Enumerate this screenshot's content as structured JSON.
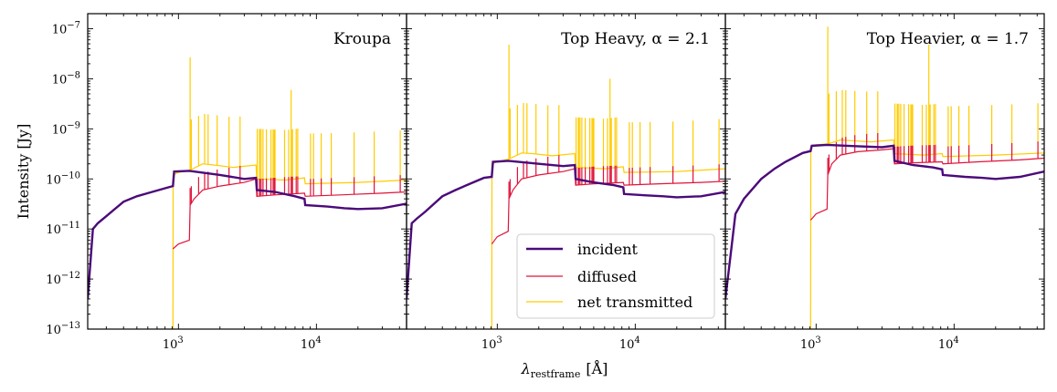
{
  "chart_data": {
    "type": "line",
    "y_axis": {
      "label_main": "Intensity [Jy]",
      "scale": "log",
      "range": [
        1e-13,
        2e-07
      ],
      "ticks": [
        {
          "value": 1e-13,
          "base": "10",
          "exp": "−13"
        },
        {
          "value": 1e-12,
          "base": "10",
          "exp": "−12"
        },
        {
          "value": 1e-11,
          "base": "10",
          "exp": "−11"
        },
        {
          "value": 1e-10,
          "base": "10",
          "exp": "−10"
        },
        {
          "value": 1e-09,
          "base": "10",
          "exp": "−9"
        },
        {
          "value": 1e-08,
          "base": "10",
          "exp": "−8"
        },
        {
          "value": 1e-07,
          "base": "10",
          "exp": "−7"
        }
      ]
    },
    "x_axis": {
      "label_main": "λ",
      "label_sub": "restframe",
      "label_unit": "[Å]",
      "scale": "log",
      "range": [
        220,
        45000
      ],
      "ticks": [
        {
          "value": 1000,
          "base": "10",
          "exp": "3"
        },
        {
          "value": 10000,
          "base": "10",
          "exp": "4"
        }
      ]
    },
    "legend": {
      "placement": "lower-right of middle panel",
      "entries": [
        {
          "label": "incident",
          "color": "#4b0a7a"
        },
        {
          "label": "diffused",
          "color": "#e0133a"
        },
        {
          "label": "net transmitted",
          "color": "#ffcc00"
        }
      ]
    },
    "panels": [
      {
        "title": "Kroupa",
        "incident": [
          [
            220,
            4e-13
          ],
          [
            240,
            1e-11
          ],
          [
            260,
            1.3e-11
          ],
          [
            300,
            1.8e-11
          ],
          [
            400,
            3.5e-11
          ],
          [
            500,
            4.5e-11
          ],
          [
            600,
            5.2e-11
          ],
          [
            800,
            6.5e-11
          ],
          [
            912,
            7.2e-11
          ],
          [
            930,
            1.4e-10
          ],
          [
            1200,
            1.45e-10
          ],
          [
            2000,
            1.2e-10
          ],
          [
            3000,
            1e-10
          ],
          [
            3646,
            1.05e-10
          ],
          [
            3700,
            6e-11
          ],
          [
            5000,
            5.5e-11
          ],
          [
            7000,
            4.5e-11
          ],
          [
            8200,
            4e-11
          ],
          [
            8300,
            3e-11
          ],
          [
            12000,
            2.8e-11
          ],
          [
            16000,
            2.6e-11
          ],
          [
            20000,
            2.5e-11
          ],
          [
            30000,
            2.6e-11
          ],
          [
            45000,
            3.2e-11
          ]
        ],
        "diffused": [
          [
            912,
            4e-12
          ],
          [
            1000,
            5e-12
          ],
          [
            1200,
            6e-12
          ],
          [
            1216,
            3e-11
          ],
          [
            1300,
            4e-11
          ],
          [
            1500,
            6e-11
          ],
          [
            2000,
            7.2e-11
          ],
          [
            3000,
            8.5e-11
          ],
          [
            3646,
            1e-10
          ],
          [
            3700,
            4.5e-11
          ],
          [
            5000,
            4.8e-11
          ],
          [
            8200,
            5.2e-11
          ],
          [
            8300,
            4.5e-11
          ],
          [
            15000,
            4.8e-11
          ],
          [
            30000,
            5.2e-11
          ],
          [
            45000,
            5.5e-11
          ]
        ],
        "net_transmitted": [
          [
            900,
            1e-13
          ],
          [
            912,
            1e-13
          ],
          [
            915,
            1.2e-10
          ],
          [
            1000,
            1.35e-10
          ],
          [
            1216,
            1.5e-10
          ],
          [
            1500,
            2e-10
          ],
          [
            1800,
            1.9e-10
          ],
          [
            2500,
            1.7e-10
          ],
          [
            3646,
            1.9e-10
          ],
          [
            3700,
            1e-10
          ],
          [
            6000,
            9.5e-11
          ],
          [
            8200,
            1.05e-10
          ],
          [
            8300,
            8e-11
          ],
          [
            20000,
            8.5e-11
          ],
          [
            45000,
            9.5e-11
          ]
        ]
      },
      {
        "title": "Top Heavy, α = 2.1",
        "incident": [
          [
            220,
            4e-13
          ],
          [
            240,
            1.3e-11
          ],
          [
            260,
            1.6e-11
          ],
          [
            300,
            2.2e-11
          ],
          [
            400,
            4.5e-11
          ],
          [
            500,
            6e-11
          ],
          [
            600,
            7.5e-11
          ],
          [
            800,
            1.05e-10
          ],
          [
            912,
            1.1e-10
          ],
          [
            930,
            2.2e-10
          ],
          [
            1200,
            2.3e-10
          ],
          [
            2000,
            2e-10
          ],
          [
            3000,
            1.8e-10
          ],
          [
            3646,
            1.9e-10
          ],
          [
            3700,
            1e-10
          ],
          [
            5000,
            8.5e-11
          ],
          [
            7000,
            7.5e-11
          ],
          [
            8200,
            6.8e-11
          ],
          [
            8300,
            5e-11
          ],
          [
            12000,
            4.7e-11
          ],
          [
            16000,
            4.5e-11
          ],
          [
            20000,
            4.3e-11
          ],
          [
            30000,
            4.5e-11
          ],
          [
            45000,
            5.5e-11
          ]
        ],
        "diffused": [
          [
            912,
            5e-12
          ],
          [
            1000,
            7e-12
          ],
          [
            1200,
            9e-12
          ],
          [
            1216,
            4e-11
          ],
          [
            1300,
            6e-11
          ],
          [
            1500,
            1e-10
          ],
          [
            2000,
            1.2e-10
          ],
          [
            3000,
            1.4e-10
          ],
          [
            3646,
            1.6e-10
          ],
          [
            3700,
            7.5e-11
          ],
          [
            5000,
            8e-11
          ],
          [
            8200,
            8.5e-11
          ],
          [
            8300,
            7.5e-11
          ],
          [
            15000,
            8e-11
          ],
          [
            30000,
            8.5e-11
          ],
          [
            45000,
            9e-11
          ]
        ],
        "net_transmitted": [
          [
            900,
            1e-13
          ],
          [
            912,
            1e-13
          ],
          [
            915,
            2e-10
          ],
          [
            1000,
            2.2e-10
          ],
          [
            1216,
            2.5e-10
          ],
          [
            1500,
            3.3e-10
          ],
          [
            1800,
            3.2e-10
          ],
          [
            2500,
            2.9e-10
          ],
          [
            3646,
            3.2e-10
          ],
          [
            3700,
            1.7e-10
          ],
          [
            6000,
            1.6e-10
          ],
          [
            8200,
            1.75e-10
          ],
          [
            8300,
            1.35e-10
          ],
          [
            20000,
            1.4e-10
          ],
          [
            45000,
            1.6e-10
          ]
        ]
      },
      {
        "title": "Top Heavier, α = 1.7",
        "incident": [
          [
            220,
            4e-13
          ],
          [
            240,
            3e-12
          ],
          [
            260,
            2e-11
          ],
          [
            300,
            4e-11
          ],
          [
            400,
            1e-10
          ],
          [
            500,
            1.6e-10
          ],
          [
            600,
            2.2e-10
          ],
          [
            800,
            3.3e-10
          ],
          [
            912,
            3.6e-10
          ],
          [
            930,
            4.6e-10
          ],
          [
            1200,
            4.8e-10
          ],
          [
            2000,
            4.5e-10
          ],
          [
            3000,
            4.3e-10
          ],
          [
            3646,
            4.6e-10
          ],
          [
            3700,
            2.3e-10
          ],
          [
            5000,
            1.9e-10
          ],
          [
            7000,
            1.7e-10
          ],
          [
            8200,
            1.55e-10
          ],
          [
            8300,
            1.2e-10
          ],
          [
            12000,
            1.1e-10
          ],
          [
            16000,
            1.05e-10
          ],
          [
            20000,
            1e-10
          ],
          [
            30000,
            1.1e-10
          ],
          [
            45000,
            1.4e-10
          ]
        ],
        "diffused": [
          [
            912,
            1.5e-11
          ],
          [
            1000,
            2e-11
          ],
          [
            1200,
            2.5e-11
          ],
          [
            1216,
            1.2e-10
          ],
          [
            1300,
            2e-10
          ],
          [
            1500,
            3e-10
          ],
          [
            2000,
            3.5e-10
          ],
          [
            3000,
            3.8e-10
          ],
          [
            3646,
            4e-10
          ],
          [
            3700,
            2e-10
          ],
          [
            5000,
            2.1e-10
          ],
          [
            8200,
            2.2e-10
          ],
          [
            8300,
            2e-10
          ],
          [
            15000,
            2.2e-10
          ],
          [
            30000,
            2.4e-10
          ],
          [
            45000,
            2.6e-10
          ]
        ],
        "net_transmitted": [
          [
            900,
            1e-13
          ],
          [
            912,
            1e-13
          ],
          [
            915,
            4.5e-10
          ],
          [
            1000,
            4.8e-10
          ],
          [
            1216,
            5e-10
          ],
          [
            1500,
            6e-10
          ],
          [
            1800,
            5.8e-10
          ],
          [
            2500,
            5.5e-10
          ],
          [
            3646,
            6e-10
          ],
          [
            3700,
            3.2e-10
          ],
          [
            6000,
            3e-10
          ],
          [
            8200,
            3.2e-10
          ],
          [
            8300,
            2.8e-10
          ],
          [
            20000,
            3e-10
          ],
          [
            45000,
            3.3e-10
          ]
        ]
      }
    ],
    "emission_lines": [
      1216,
      1240,
      1400,
      1549,
      1640,
      1909,
      2326,
      2798,
      3727,
      3869,
      3889,
      3970,
      4102,
      4340,
      4686,
      4861,
      4959,
      5007,
      5876,
      6300,
      6563,
      6584,
      6716,
      7135,
      7325,
      9069,
      9531,
      10830,
      12820,
      18750,
      26250,
      40510
    ],
    "line_peak_factor": 10,
    "line_peaks_special": [
      {
        "wavelength": 1216,
        "panel0": 2.7e-08,
        "panel1": 4.8e-08,
        "panel2": 1.1e-07
      },
      {
        "wavelength": 6563,
        "panel0": 6e-09,
        "panel1": 1e-08,
        "panel2": 4.8e-08
      }
    ]
  }
}
